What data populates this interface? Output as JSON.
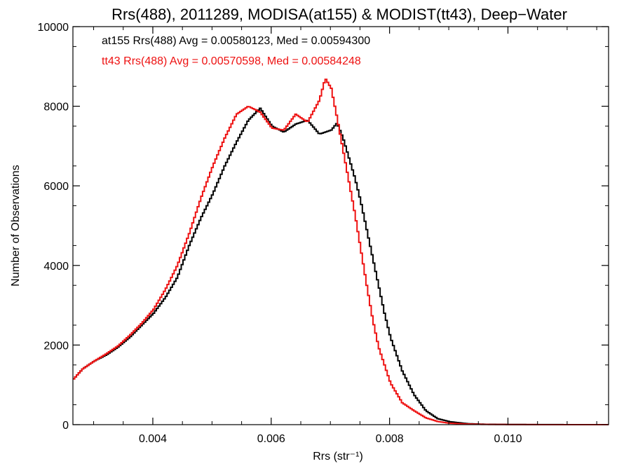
{
  "chart_data": {
    "type": "line",
    "title": "Rrs(488), 2011289, MODISA(at155) & MODIST(tt43), Deep−Water",
    "xlabel": "Rrs (str⁻¹)",
    "ylabel": "Number of Observations",
    "xlim": [
      0.00265,
      0.0117
    ],
    "ylim": [
      0,
      10000
    ],
    "x_ticks": [
      0.004,
      0.006,
      0.008,
      0.01
    ],
    "x_tick_labels": [
      "0.004",
      "0.006",
      "0.008",
      "0.010"
    ],
    "y_ticks": [
      0,
      2000,
      4000,
      6000,
      8000,
      10000
    ],
    "y_tick_labels": [
      "0",
      "2000",
      "4000",
      "6000",
      "8000",
      "10000"
    ],
    "step": true,
    "grid": false,
    "annotations": [
      {
        "text": "at155 Rrs(488) Avg = 0.00580123, Med = 0.00594300",
        "color": "#000000"
      },
      {
        "text": "tt43 Rrs(488) Avg = 0.00570598, Med = 0.00584248",
        "color": "#ee1111"
      }
    ],
    "series": [
      {
        "color": "#000000",
        "points": [
          [
            0.00265,
            1150
          ],
          [
            0.0028,
            1400
          ],
          [
            0.003,
            1600
          ],
          [
            0.0032,
            1750
          ],
          [
            0.0034,
            1950
          ],
          [
            0.0036,
            2200
          ],
          [
            0.0038,
            2500
          ],
          [
            0.004,
            2800
          ],
          [
            0.0042,
            3200
          ],
          [
            0.0044,
            3700
          ],
          [
            0.0046,
            4500
          ],
          [
            0.0048,
            5200
          ],
          [
            0.005,
            5800
          ],
          [
            0.0052,
            6500
          ],
          [
            0.0054,
            7100
          ],
          [
            0.0056,
            7650
          ],
          [
            0.0058,
            7950
          ],
          [
            0.006,
            7500
          ],
          [
            0.0062,
            7350
          ],
          [
            0.0064,
            7550
          ],
          [
            0.0066,
            7650
          ],
          [
            0.0068,
            7300
          ],
          [
            0.007,
            7400
          ],
          [
            0.0071,
            7580
          ],
          [
            0.0072,
            7200
          ],
          [
            0.0073,
            6700
          ],
          [
            0.0074,
            6200
          ],
          [
            0.0075,
            5600
          ],
          [
            0.0076,
            4900
          ],
          [
            0.0077,
            4200
          ],
          [
            0.0078,
            3500
          ],
          [
            0.0079,
            2800
          ],
          [
            0.008,
            2200
          ],
          [
            0.0082,
            1350
          ],
          [
            0.0084,
            750
          ],
          [
            0.0086,
            350
          ],
          [
            0.0088,
            150
          ],
          [
            0.009,
            75
          ],
          [
            0.0093,
            25
          ],
          [
            0.0096,
            10
          ],
          [
            0.01,
            5
          ],
          [
            0.0105,
            2
          ],
          [
            0.011,
            1
          ],
          [
            0.0117,
            0
          ]
        ]
      },
      {
        "color": "#ee1111",
        "points": [
          [
            0.00265,
            1150
          ],
          [
            0.0028,
            1400
          ],
          [
            0.003,
            1600
          ],
          [
            0.0032,
            1780
          ],
          [
            0.0034,
            1980
          ],
          [
            0.0036,
            2250
          ],
          [
            0.0038,
            2550
          ],
          [
            0.004,
            2900
          ],
          [
            0.0042,
            3400
          ],
          [
            0.0044,
            4000
          ],
          [
            0.0046,
            4800
          ],
          [
            0.0048,
            5700
          ],
          [
            0.005,
            6500
          ],
          [
            0.0052,
            7200
          ],
          [
            0.0054,
            7800
          ],
          [
            0.0056,
            8000
          ],
          [
            0.0058,
            7850
          ],
          [
            0.006,
            7450
          ],
          [
            0.0062,
            7400
          ],
          [
            0.0064,
            7800
          ],
          [
            0.0066,
            7600
          ],
          [
            0.0068,
            8150
          ],
          [
            0.0069,
            8700
          ],
          [
            0.007,
            8450
          ],
          [
            0.0071,
            7700
          ],
          [
            0.0072,
            6900
          ],
          [
            0.0073,
            6100
          ],
          [
            0.0074,
            5300
          ],
          [
            0.0075,
            4400
          ],
          [
            0.0076,
            3500
          ],
          [
            0.0077,
            2650
          ],
          [
            0.0078,
            1950
          ],
          [
            0.008,
            1050
          ],
          [
            0.0082,
            550
          ],
          [
            0.0084,
            350
          ],
          [
            0.0086,
            170
          ],
          [
            0.0088,
            80
          ],
          [
            0.009,
            35
          ],
          [
            0.0093,
            15
          ],
          [
            0.0096,
            6
          ],
          [
            0.01,
            3
          ],
          [
            0.0105,
            1
          ],
          [
            0.011,
            1
          ],
          [
            0.0117,
            0
          ]
        ]
      }
    ]
  }
}
